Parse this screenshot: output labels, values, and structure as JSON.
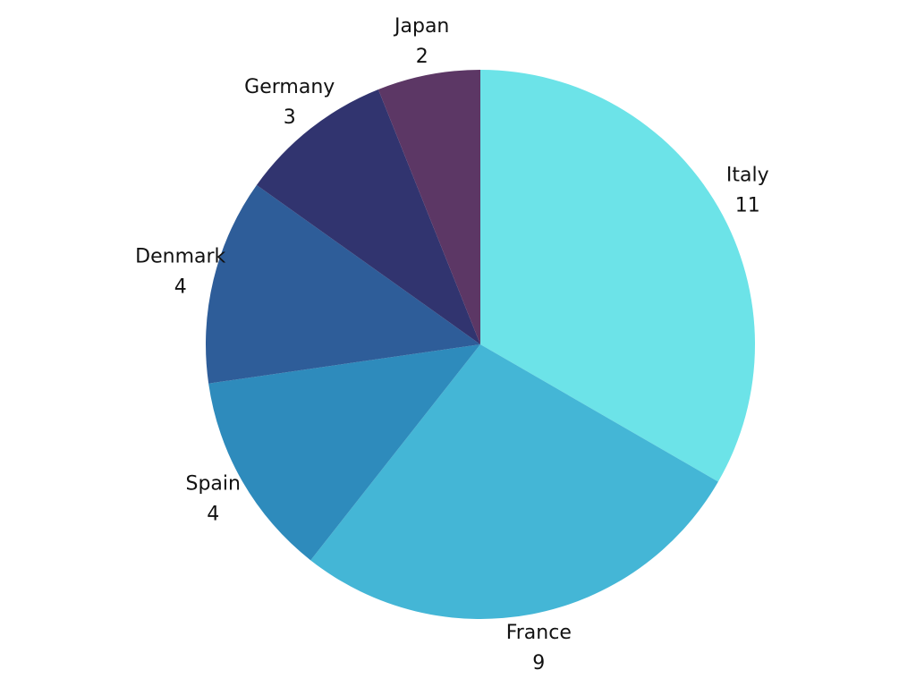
{
  "chart_data": {
    "type": "pie",
    "categories": [
      "Italy",
      "France",
      "Spain",
      "Denmark",
      "Germany",
      "Japan"
    ],
    "values": [
      11,
      9,
      4,
      4,
      3,
      2
    ],
    "colors": [
      "#6ce3e8",
      "#44b6d6",
      "#2e8bbc",
      "#2e5d99",
      "#31346f",
      "#5c3765"
    ]
  }
}
